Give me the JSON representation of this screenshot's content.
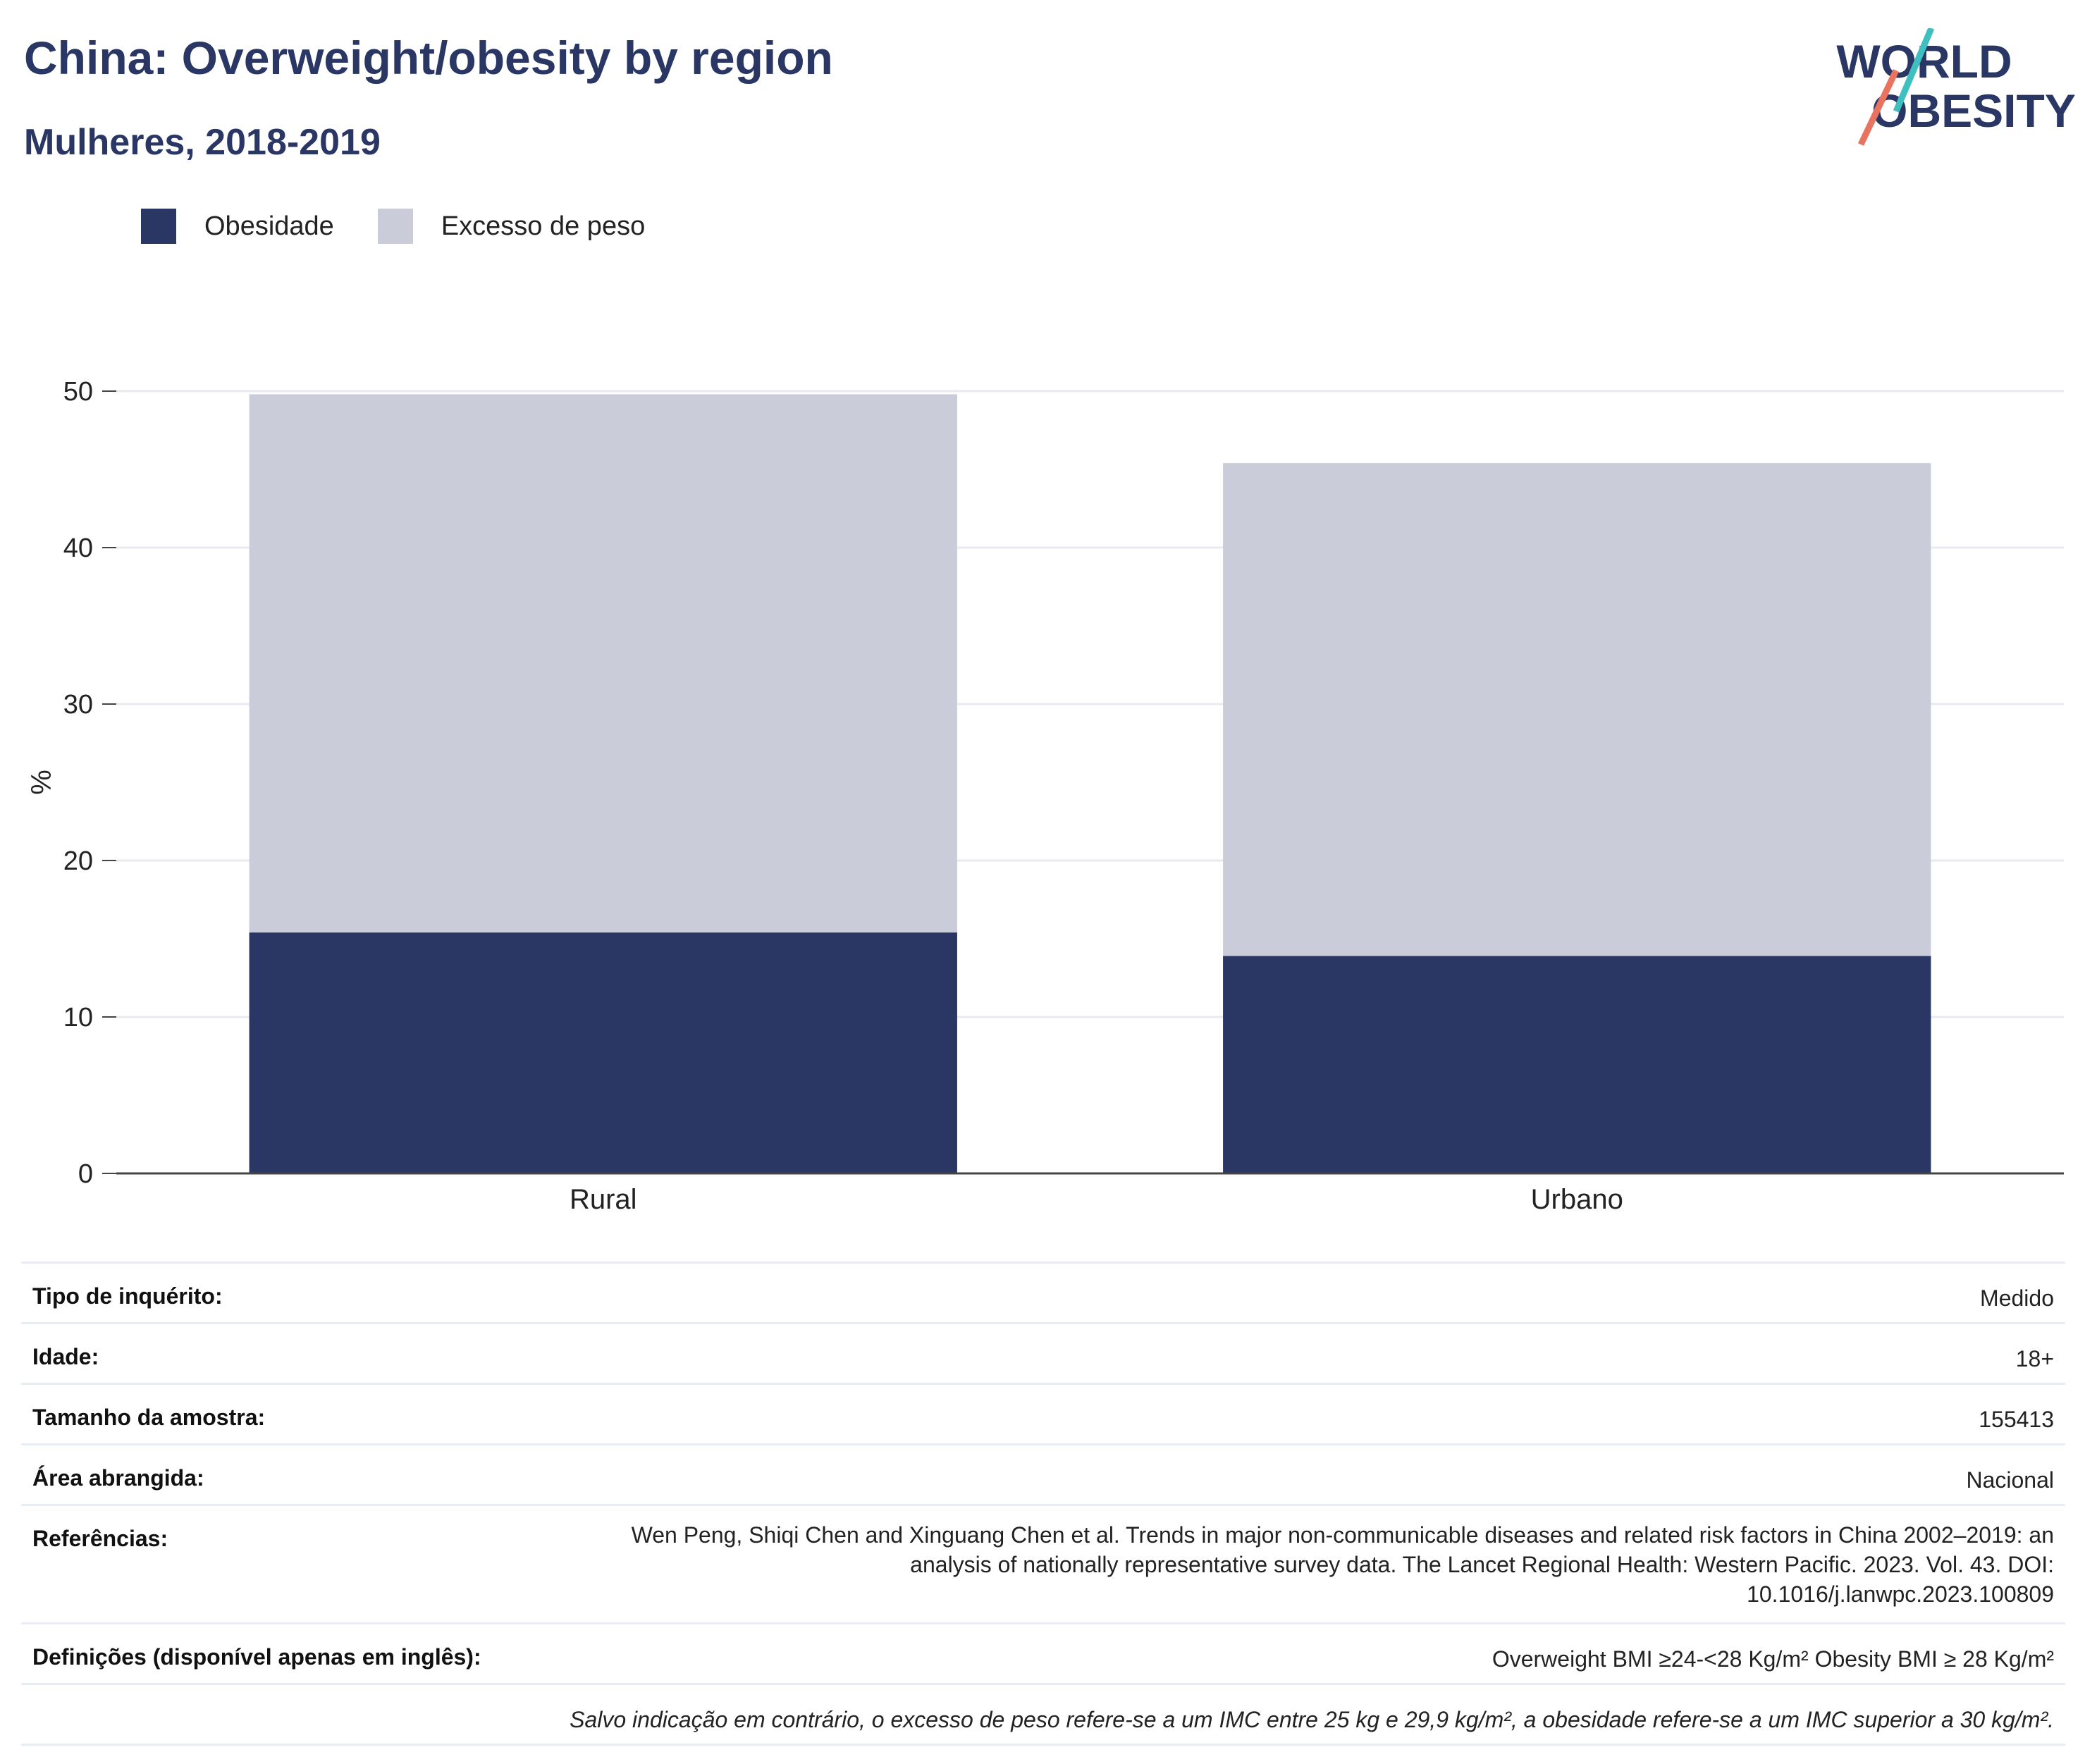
{
  "header": {
    "title": "China: Overweight/obesity by region",
    "subtitle": "Mulheres, 2018-2019"
  },
  "logo": {
    "line1": "WORLD",
    "line2": "OBESITY"
  },
  "colors": {
    "obesity": "#2a3663",
    "overweight": "#cacdd9",
    "brand_teal": "#3fbfbf",
    "brand_red": "#e8735f",
    "title": "#2a3663"
  },
  "legend": {
    "items": [
      "Obesidade",
      "Excesso de peso"
    ]
  },
  "chart_data": {
    "type": "bar",
    "stacked": true,
    "categories": [
      "Rural",
      "Urbano"
    ],
    "series": [
      {
        "name": "Obesidade",
        "values": [
          15.4,
          13.9
        ]
      },
      {
        "name": "Excesso de peso",
        "values": [
          34.4,
          31.5
        ]
      }
    ],
    "totals": [
      49.8,
      45.4
    ],
    "ylabel": "%",
    "yticks": [
      0,
      10,
      20,
      30,
      40,
      50
    ],
    "ylim": [
      0,
      50
    ],
    "grid": true,
    "legend_position": "top-left"
  },
  "meta": {
    "survey_type": {
      "label": "Tipo de inquérito:",
      "value": "Medido"
    },
    "age": {
      "label": "Idade:",
      "value": "18+"
    },
    "sample_size": {
      "label": "Tamanho da amostra:",
      "value": "155413"
    },
    "area": {
      "label": "Área abrangida:",
      "value": "Nacional"
    },
    "references": {
      "label": "Referências:",
      "value": "Wen Peng, Shiqi Chen and Xinguang Chen et al. Trends in major non-communicable diseases and related risk factors in China 2002–2019: an analysis of nationally representative survey data. The Lancet Regional Health: Western Pacific. 2023. Vol. 43. DOI: 10.1016/j.lanwpc.2023.100809"
    },
    "definitions": {
      "label": "Definições (disponível apenas em inglês):",
      "value": "Overweight BMI ≥24-<28 Kg/m² Obesity BMI ≥ 28 Kg/m²"
    },
    "note": "Salvo indicação em contrário, o excesso de peso refere-se a um IMC entre 25 kg e 29,9 kg/m², a obesidade refere-se a um IMC superior a 30 kg/m²."
  }
}
